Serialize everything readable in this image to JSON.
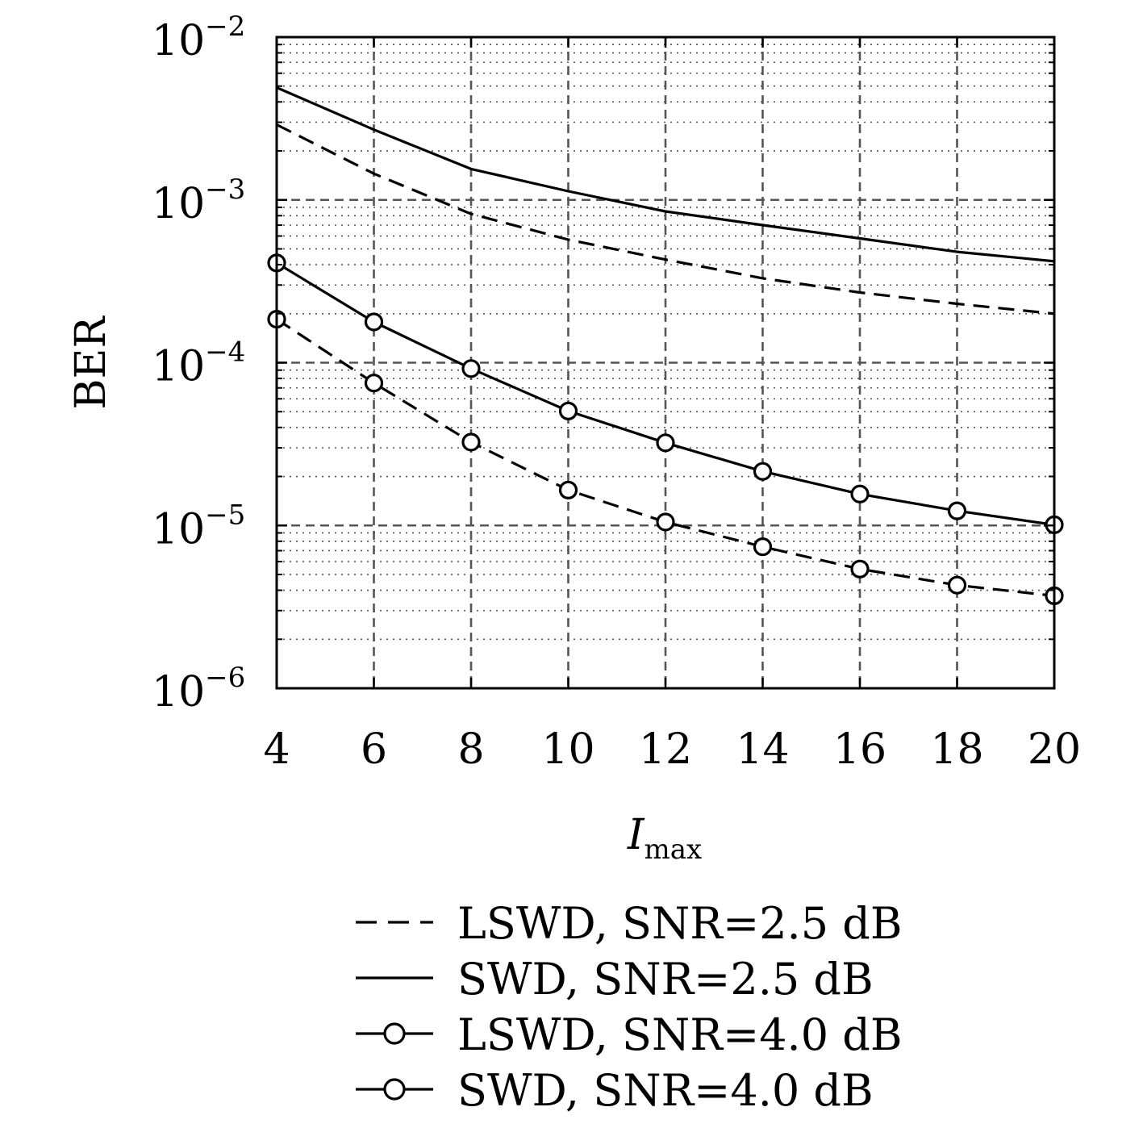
{
  "chart_data": {
    "type": "line",
    "xlabel_main": "I",
    "xlabel_sub": "max",
    "ylabel": "BER",
    "y_scale": "log",
    "xlim": [
      4,
      20
    ],
    "ylim": [
      1e-06,
      0.01
    ],
    "x_ticks": [
      "4",
      "6",
      "8",
      "10",
      "12",
      "14",
      "16",
      "18",
      "20"
    ],
    "y_ticks": [
      {
        "value": 0.01,
        "base": "10",
        "exp": "−2"
      },
      {
        "value": 0.001,
        "base": "10",
        "exp": "−3"
      },
      {
        "value": 0.0001,
        "base": "10",
        "exp": "−4"
      },
      {
        "value": 1e-05,
        "base": "10",
        "exp": "−5"
      },
      {
        "value": 1e-06,
        "base": "10",
        "exp": "−6"
      }
    ],
    "grid": "major dashed, minor dotted",
    "legend_position": "below plot",
    "x": [
      4,
      6,
      8,
      10,
      12,
      14,
      16,
      18,
      20
    ],
    "series": [
      {
        "name": "LSWD, SNR=2.5 dB",
        "style": "dashed",
        "marker": "none",
        "values": [
          0.0029,
          0.00145,
          0.00082,
          0.00057,
          0.00043,
          0.00033,
          0.00027,
          0.00023,
          0.0002
        ]
      },
      {
        "name": "SWD, SNR=2.5 dB",
        "style": "solid",
        "marker": "none",
        "values": [
          0.0049,
          0.0027,
          0.00155,
          0.00113,
          0.00085,
          0.0007,
          0.00058,
          0.00048,
          0.00042
        ]
      },
      {
        "name": "LSWD, SNR=4.0 dB",
        "style": "dashed",
        "marker": "circle",
        "values": [
          0.000185,
          7.5e-05,
          3.25e-05,
          1.65e-05,
          1.05e-05,
          7.4e-06,
          5.4e-06,
          4.3e-06,
          3.7e-06
        ]
      },
      {
        "name": "SWD, SNR=4.0 dB",
        "style": "solid",
        "marker": "circle",
        "values": [
          0.00041,
          0.000178,
          9.2e-05,
          5.05e-05,
          3.22e-05,
          2.15e-05,
          1.56e-05,
          1.23e-05,
          1.01e-05
        ]
      }
    ],
    "colors": {
      "line": "#000000",
      "grid": "#555555"
    }
  }
}
